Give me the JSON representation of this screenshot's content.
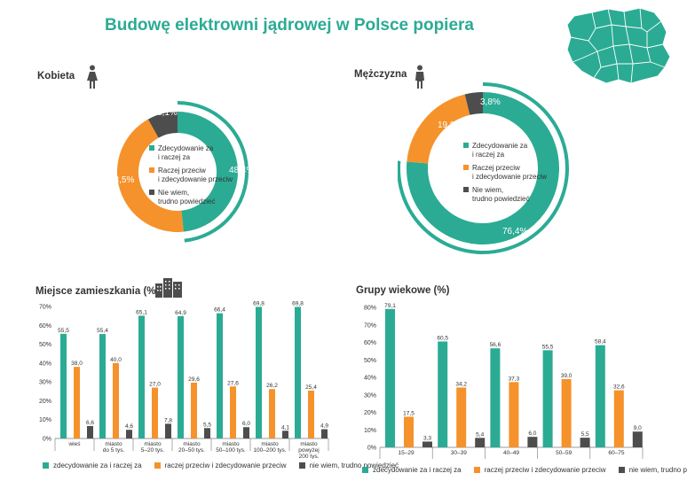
{
  "title": "Budowę elektrowni jądrowej w Polsce popiera",
  "colors": {
    "teal": "#2bab94",
    "orange": "#f5922b",
    "dark": "#4d4d4d",
    "axis": "#777777"
  },
  "women": {
    "label": "Kobieta",
    "slices": [
      {
        "label": "Zdecydowanie za i raczej za",
        "value": 48.4,
        "display": "48,4%"
      },
      {
        "label": "Raczej przeciw i zdecydowanie przeciw",
        "value": 43.5,
        "display": "43,5%"
      },
      {
        "label": "Nie wiem, trudno powiedzieć",
        "value": 8.1,
        "display": "8,1%"
      }
    ],
    "legend": [
      {
        "line1": "Zdecydowanie za",
        "line2": "i raczej za"
      },
      {
        "line1": "Raczej przeciw",
        "line2": "i zdecydowanie przeciw"
      },
      {
        "line1": "Nie wiem,",
        "line2": "trudno powiedzieć"
      }
    ]
  },
  "men": {
    "label": "Mężczyzna",
    "slices": [
      {
        "label": "Zdecydowanie za i raczej za",
        "value": 76.4,
        "display": "76,4%"
      },
      {
        "label": "Raczej przeciw i zdecydowanie przeciw",
        "value": 19.8,
        "display": "19,8%"
      },
      {
        "label": "Nie wiem, trudno powiedzieć",
        "value": 3.8,
        "display": "3,8%"
      }
    ],
    "legend": [
      {
        "line1": "Zdecydowanie za",
        "line2": "i raczej za"
      },
      {
        "line1": "Raczej przeciw",
        "line2": "i zdecydowanie przeciw"
      },
      {
        "line1": "Nie wiem,",
        "line2": "trudno powiedzieć"
      }
    ]
  },
  "residence": {
    "label": "Miejsce zamieszkania (%)",
    "legend": [
      "zdecydowanie za i raczej za",
      "raczej przeciw i zdecydowanie przeciw",
      "nie wiem, trudno powiedzieć"
    ]
  },
  "age": {
    "label": "Grupy wiekowe (%)",
    "legend": [
      "zdecydowanie za i raczej za",
      "raczej przeciw i zdecydowanie przeciw",
      "nie wiem, trudno powiedzieć"
    ]
  },
  "chart_data": [
    {
      "type": "pie",
      "title": "Kobieta",
      "categories": [
        "Zdecydowanie za i raczej za",
        "Raczej przeciw i zdecydowanie przeciw",
        "Nie wiem, trudno powiedzieć"
      ],
      "values": [
        48.4,
        43.5,
        8.1
      ]
    },
    {
      "type": "pie",
      "title": "Mężczyzna",
      "categories": [
        "Zdecydowanie za i raczej za",
        "Raczej przeciw i zdecydowanie przeciw",
        "Nie wiem, trudno powiedzieć"
      ],
      "values": [
        76.4,
        19.8,
        3.8
      ]
    },
    {
      "type": "bar",
      "title": "Miejsce zamieszkania (%)",
      "categories": [
        [
          "wieś"
        ],
        [
          "miasto",
          "do 5 tys."
        ],
        [
          "miasto",
          "5–20 tys."
        ],
        [
          "miasto",
          "20–50 tys."
        ],
        [
          "miasto",
          "50–100 tys."
        ],
        [
          "miasto",
          "100–200 tys."
        ],
        [
          "miasto",
          "powyżej",
          "200 tys."
        ]
      ],
      "series": [
        {
          "name": "zdecydowanie za i raczej za",
          "values": [
            55.5,
            55.4,
            65.1,
            64.9,
            66.4,
            69.8,
            69.8
          ],
          "labels": [
            "55,5",
            "55,4",
            "65,1",
            "64,9",
            "66,4",
            "69,8",
            "69,8"
          ]
        },
        {
          "name": "raczej przeciw i zdecydowanie przeciw",
          "values": [
            38.0,
            40.0,
            27.0,
            29.6,
            27.6,
            26.2,
            25.4
          ],
          "labels": [
            "38,0",
            "40,0",
            "27,0",
            "29,6",
            "27,6",
            "26,2",
            "25,4"
          ]
        },
        {
          "name": "nie wiem, trudno powiedzieć",
          "values": [
            6.6,
            4.6,
            7.8,
            5.5,
            6.0,
            4.1,
            4.9
          ],
          "labels": [
            "6,6",
            "4,6",
            "7,8",
            "5,5",
            "6,0",
            "4,1",
            "4,9"
          ]
        }
      ],
      "ylim": [
        0,
        70
      ],
      "yticks": [
        "0%",
        "10%",
        "20%",
        "30%",
        "40%",
        "50%",
        "60%",
        "70%"
      ],
      "grid": false,
      "legend": "bottom"
    },
    {
      "type": "bar",
      "title": "Grupy wiekowe (%)",
      "categories": [
        [
          "15–29"
        ],
        [
          "30–39"
        ],
        [
          "40–49"
        ],
        [
          "50–59"
        ],
        [
          "60–75"
        ]
      ],
      "series": [
        {
          "name": "zdecydowanie za i raczej za",
          "values": [
            79.1,
            60.5,
            56.6,
            55.5,
            58.4
          ],
          "labels": [
            "79,1",
            "60,5",
            "56,6",
            "55,5",
            "58,4"
          ]
        },
        {
          "name": "raczej przeciw i zdecydowanie przeciw",
          "values": [
            17.5,
            34.2,
            37.3,
            39.0,
            32.6
          ],
          "labels": [
            "17,5",
            "34,2",
            "37,3",
            "39,0",
            "32,6"
          ]
        },
        {
          "name": "nie wiem, trudno powiedzieć",
          "values": [
            3.3,
            5.4,
            6.0,
            5.5,
            9.0
          ],
          "labels": [
            "3,3",
            "5,4",
            "6,0",
            "5,5",
            "9,0"
          ]
        }
      ],
      "ylim": [
        0,
        80
      ],
      "yticks": [
        "0%",
        "10%",
        "20%",
        "30%",
        "40%",
        "50%",
        "60%",
        "70%",
        "80%"
      ],
      "grid": false,
      "legend": "bottom"
    }
  ]
}
